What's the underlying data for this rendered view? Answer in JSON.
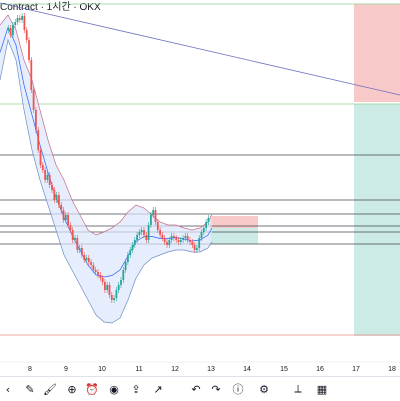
{
  "header": {
    "title": "Contract · 1시간 · OKX"
  },
  "chart_data": {
    "type": "candlestick",
    "x_ticks": [
      "8",
      "9",
      "10",
      "11",
      "12",
      "13",
      "14",
      "15",
      "16",
      "17",
      "18"
    ],
    "colors": {
      "up": "#26a69a",
      "down": "#ef5350",
      "band": "#2962ff",
      "band_fill": "#dbe6fb",
      "trend": "#6b6fbf",
      "long_stop": "#f7c9c9",
      "long_target": "#cdebe6",
      "green_line": "#8fd18f",
      "red_line": "#f28b82"
    },
    "levels": [
      "upper-green",
      "upper-black",
      "mid-black-1",
      "mid-black-2",
      "mid-black-3",
      "mid-black-4",
      "lower-black",
      "bottom-red"
    ]
  },
  "toolbar": {
    "icons": [
      "chevron-left-icon",
      "pencil-icon",
      "brush-icon",
      "plus-circle-icon",
      "alarm-icon",
      "camera-icon",
      "share-icon",
      "trend-icon",
      "undo-icon",
      "redo-icon",
      "info-icon",
      "settings-icon",
      "ruler-icon",
      "chart-icon"
    ]
  }
}
